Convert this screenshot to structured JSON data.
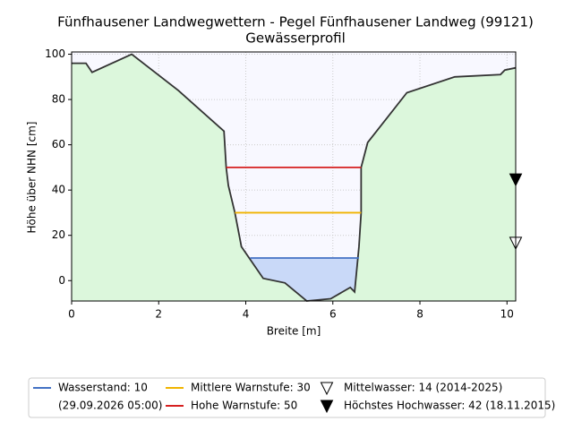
{
  "chart_data": {
    "type": "profile",
    "title": "Fünfhausener Landwegwettern - Pegel Fünfhausener Landweg (99121)",
    "subtitle": "Gewässerprofil",
    "xlabel": "Breite [m]",
    "ylabel": "Höhe über NHN [cm]",
    "xlim": [
      0,
      10.2
    ],
    "ylim": [
      -9,
      101
    ],
    "xticks": [
      0,
      2,
      4,
      6,
      8,
      10
    ],
    "yticks": [
      0,
      20,
      40,
      60,
      80,
      100
    ],
    "grid": true,
    "profile": {
      "color": "#333333",
      "fill": "#dcf7dc",
      "x": [
        0,
        0.33,
        0.47,
        1.38,
        2.45,
        3.5,
        3.55,
        3.6,
        3.75,
        3.9,
        4.4,
        4.9,
        5.4,
        5.95,
        6.4,
        6.5,
        6.6,
        6.65,
        6.65,
        6.8,
        7.7,
        8.8,
        9.85,
        9.95,
        10.2
      ],
      "y": [
        96,
        96,
        92,
        100,
        84,
        66,
        50,
        42,
        30,
        15,
        1,
        -1,
        -9,
        -8,
        -3,
        -5,
        15,
        30,
        50,
        61,
        83,
        90,
        91,
        93,
        94
      ]
    },
    "levels": [
      {
        "name": "Wasserstand: 10",
        "subname": "(29.09.2026 05:00)",
        "value": 10,
        "x": [
          4.1,
          6.6
        ],
        "color": "#4472c4",
        "fill": "#c9d9f8"
      },
      {
        "name": "Mittlere Warnstufe: 30",
        "value": 30,
        "x": [
          3.75,
          6.65
        ],
        "color": "#f0b400"
      },
      {
        "name": "Hohe Warnstufe: 50",
        "value": 50,
        "x": [
          3.55,
          6.65
        ],
        "color": "#d62020"
      }
    ],
    "markers": [
      {
        "name": "Mittelwasser: 14 (2014-2025)",
        "value": 14,
        "filled": false
      },
      {
        "name": "Höchstes Hochwasser: 42 (18.11.2015)",
        "value": 42,
        "filled": true
      }
    ]
  }
}
